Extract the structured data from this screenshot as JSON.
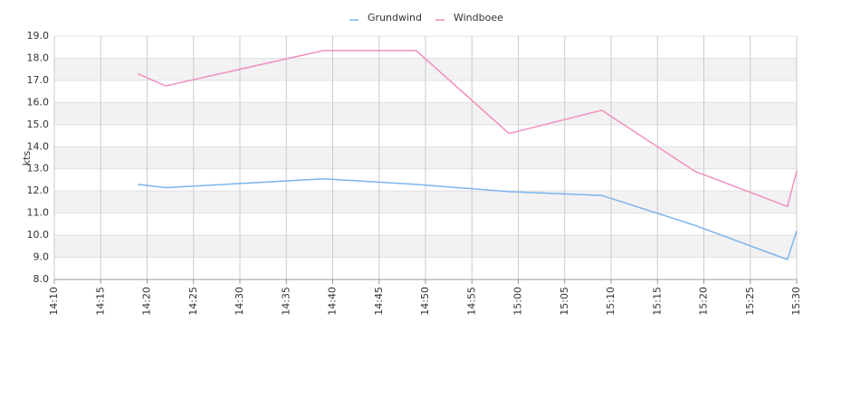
{
  "chart_data": {
    "type": "line",
    "y_label": "kts",
    "x": [
      "14:19",
      "14:22",
      "14:39",
      "14:49",
      "14:59",
      "15:09",
      "15:19",
      "15:29",
      "15:30"
    ],
    "series": [
      {
        "name": "Grundwind",
        "color": "#7cb5ec",
        "values": [
          12.3,
          12.15,
          12.55,
          12.3,
          11.97,
          11.8,
          10.45,
          8.9,
          10.2
        ]
      },
      {
        "name": "Windboee",
        "color": "#f08fbf",
        "values": [
          17.3,
          16.75,
          18.35,
          18.35,
          14.6,
          15.65,
          12.9,
          11.3,
          12.9
        ]
      }
    ],
    "xlim": [
      "14:10",
      "15:30"
    ],
    "xticks": [
      "14:10",
      "14:15",
      "14:20",
      "14:25",
      "14:30",
      "14:35",
      "14:40",
      "14:45",
      "14:50",
      "14:55",
      "15:00",
      "15:05",
      "15:10",
      "15:15",
      "15:20",
      "15:25",
      "15:30"
    ],
    "ylim": [
      8,
      19
    ],
    "yticks": [
      {
        "value": 8,
        "label": "8.0"
      },
      {
        "value": 9,
        "label": "9.0"
      },
      {
        "value": 10,
        "label": "10.0"
      },
      {
        "value": 11,
        "label": "11.0"
      },
      {
        "value": 12,
        "label": "12.0"
      },
      {
        "value": 13,
        "label": "13.0"
      },
      {
        "value": 14,
        "label": "14.0"
      },
      {
        "value": 15,
        "label": "15.0"
      },
      {
        "value": 16,
        "label": "16.0"
      },
      {
        "value": 17,
        "label": "17.0"
      },
      {
        "value": 18,
        "label": "18.0"
      },
      {
        "value": 19,
        "label": "19.0"
      }
    ],
    "grid": true,
    "legend": "top"
  }
}
